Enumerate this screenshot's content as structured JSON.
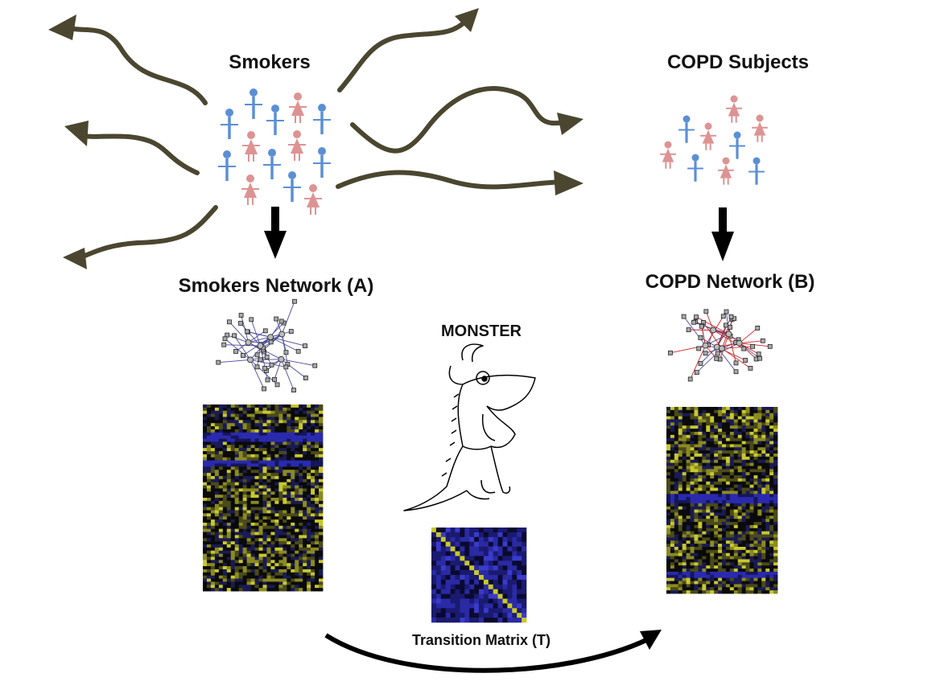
{
  "labels": {
    "smokers": "Smokers",
    "copd_subjects": "COPD Subjects",
    "smokers_network": "Smokers Network (A)",
    "copd_network": "COPD Network (B)",
    "monster": "MONSTER",
    "transition_matrix": "Transition Matrix (T)"
  },
  "colors": {
    "male": "#5b8fd4",
    "female": "#dd9393",
    "wavy_arrow": "#4a4630",
    "arrow": "#000000",
    "heatmap_low": "#1a1a8a",
    "heatmap_high": "#c8c82a",
    "copd_edge": "#cc2222",
    "smokers_edge": "#4a4a9a"
  },
  "icons": [
    "male-person-icon",
    "female-person-icon",
    "monster-illustration",
    "network-graph-icon"
  ]
}
